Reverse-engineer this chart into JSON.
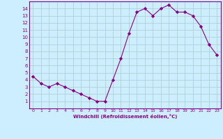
{
  "x": [
    0,
    1,
    2,
    3,
    4,
    5,
    6,
    7,
    8,
    9,
    10,
    11,
    12,
    13,
    14,
    15,
    16,
    17,
    18,
    19,
    20,
    21,
    22,
    23
  ],
  "y": [
    4.5,
    3.5,
    3.0,
    3.5,
    3.0,
    2.5,
    2.0,
    1.5,
    1.0,
    1.0,
    4.0,
    7.0,
    10.5,
    13.5,
    14.0,
    13.0,
    14.0,
    14.5,
    13.5,
    13.5,
    13.0,
    11.5,
    9.0,
    7.5
  ],
  "line_color": "#880088",
  "marker": "D",
  "marker_size": 2.2,
  "bg_color": "#cceeff",
  "grid_color": "#aacccc",
  "xlabel": "Windchill (Refroidissement éolien,°C)",
  "ylim": [
    0,
    15
  ],
  "yticks": [
    1,
    2,
    3,
    4,
    5,
    6,
    7,
    8,
    9,
    10,
    11,
    12,
    13,
    14
  ],
  "xticks": [
    0,
    1,
    2,
    3,
    4,
    5,
    6,
    7,
    8,
    9,
    10,
    11,
    12,
    13,
    14,
    15,
    16,
    17,
    18,
    19,
    20,
    21,
    22,
    23
  ],
  "tick_color": "#880088",
  "label_color": "#880088",
  "spine_color": "#880088"
}
